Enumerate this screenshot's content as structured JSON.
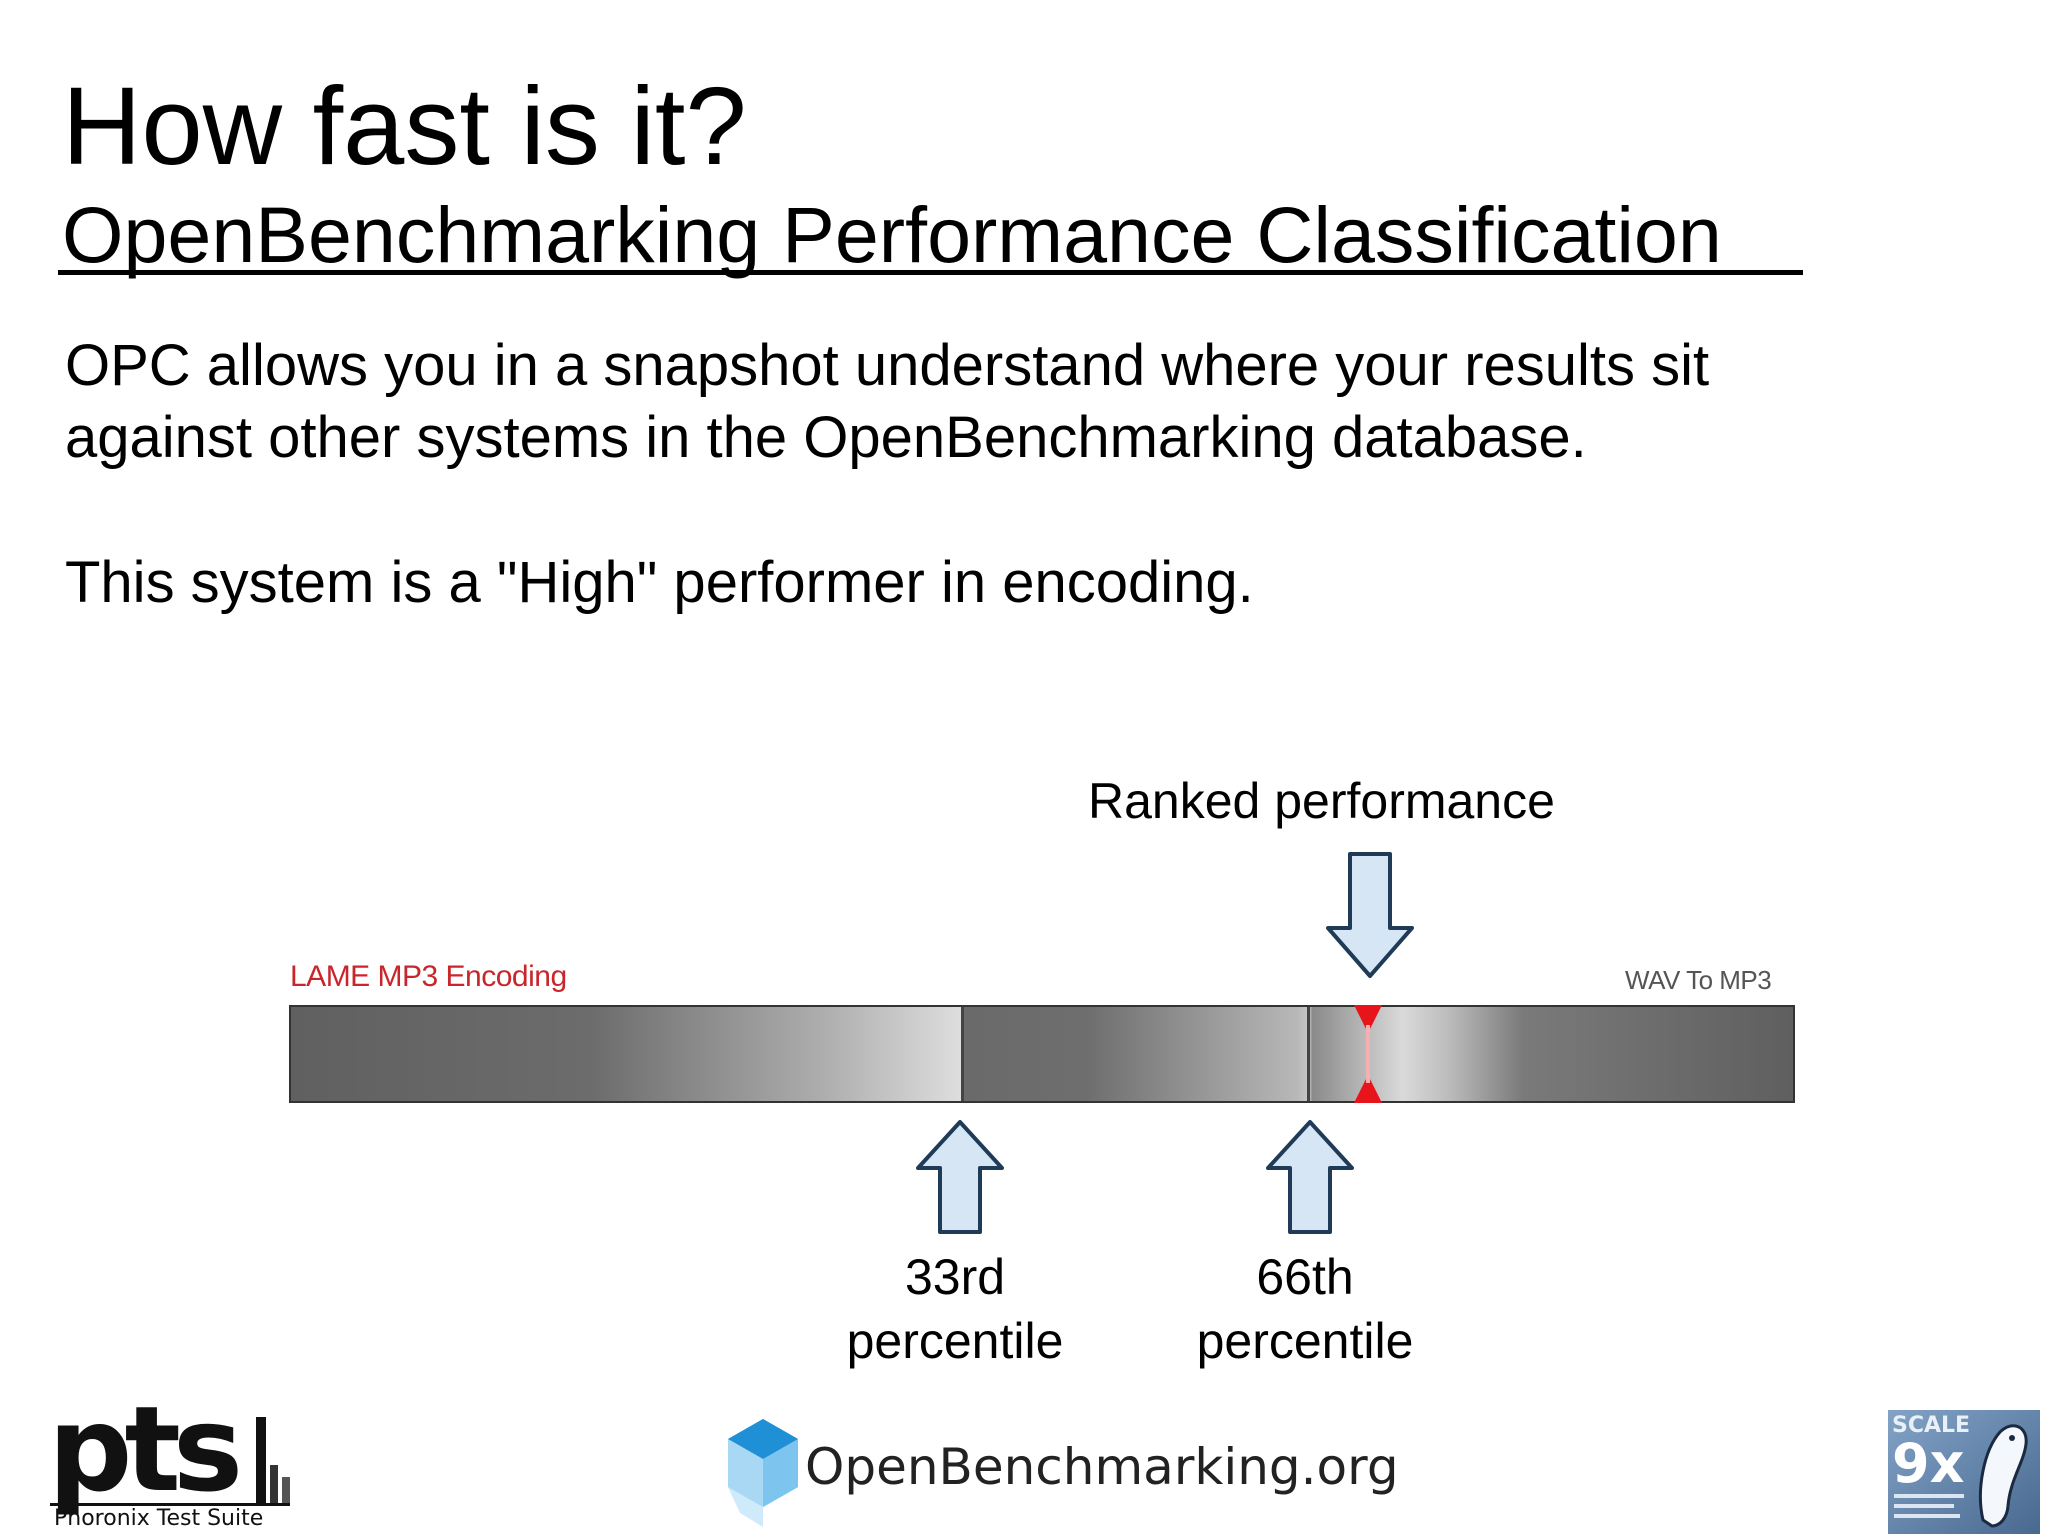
{
  "slide": {
    "title": "How fast is it?",
    "subtitle": "OpenBenchmarking Performance Classification",
    "paragraph_line1": "OPC allows you in a snapshot understand where your results sit",
    "paragraph_line2": "against other systems in the OpenBenchmarking database.",
    "statement": "This system is a \"High\" performer in encoding."
  },
  "figure": {
    "ranked_label": "Ranked performance",
    "bar_left_caption": "LAME MP3 Encoding",
    "bar_right_caption": "WAV To MP3",
    "p33_line1": "33rd",
    "p33_line2": "percentile",
    "p66_line1": "66th",
    "p66_line2": "percentile",
    "marker_color": "#e8141c",
    "arrow_fill": "#d6e6f4",
    "arrow_stroke": "#1f3b57"
  },
  "footer": {
    "pts_logo_text": "pts",
    "pts_tagline": "Phoronix Test Suite",
    "openbenchmarking_text": "OpenBenchmarking.org",
    "scale_logo_text": "9x",
    "scale_logo_word": "SCALE"
  }
}
